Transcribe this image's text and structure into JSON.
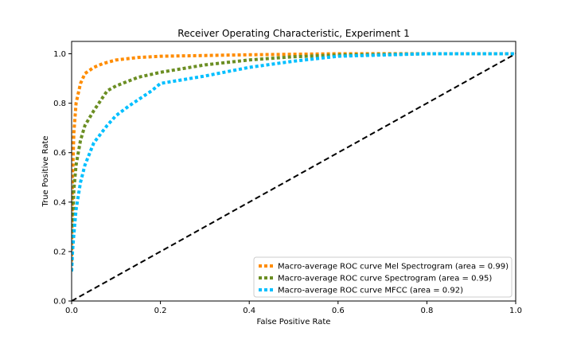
{
  "chart_data": {
    "type": "line",
    "title": "Receiver Operating Characteristic, Experiment 1",
    "xlabel": "False Positive Rate",
    "ylabel": "True Positive Rate",
    "xlim": [
      0.0,
      1.0
    ],
    "ylim": [
      0.0,
      1.05
    ],
    "xticks": [
      "0.0",
      "0.2",
      "0.4",
      "0.6",
      "0.8",
      "1.0"
    ],
    "yticks": [
      "0.0",
      "0.2",
      "0.4",
      "0.6",
      "0.8",
      "1.0"
    ],
    "grid": false,
    "legend_position": "lower-right",
    "series": [
      {
        "name": "Macro-average ROC curve Mel Spectrogram (area = 0.99)",
        "color": "#ff8c00",
        "style": "dotted",
        "x": [
          0.0,
          0.002,
          0.005,
          0.01,
          0.02,
          0.03,
          0.05,
          0.07,
          0.1,
          0.15,
          0.2,
          0.3,
          0.4,
          0.5,
          0.6,
          0.8,
          1.0
        ],
        "y": [
          0.16,
          0.5,
          0.68,
          0.8,
          0.88,
          0.92,
          0.945,
          0.96,
          0.975,
          0.985,
          0.99,
          0.993,
          0.996,
          0.998,
          1.0,
          1.0,
          1.0
        ]
      },
      {
        "name": "Macro-average ROC curve Spectrogram (area = 0.95)",
        "color": "#6b8e23",
        "style": "dotted",
        "x": [
          0.0,
          0.002,
          0.005,
          0.01,
          0.02,
          0.03,
          0.05,
          0.08,
          0.1,
          0.15,
          0.2,
          0.3,
          0.4,
          0.5,
          0.6,
          0.8,
          1.0
        ],
        "y": [
          0.12,
          0.3,
          0.45,
          0.55,
          0.65,
          0.71,
          0.77,
          0.85,
          0.87,
          0.905,
          0.925,
          0.955,
          0.975,
          0.988,
          0.995,
          1.0,
          1.0
        ]
      },
      {
        "name": "Macro-average ROC curve MFCC (area = 0.92)",
        "color": "#00bfff",
        "style": "dotted",
        "x": [
          0.0,
          0.002,
          0.005,
          0.01,
          0.02,
          0.03,
          0.05,
          0.08,
          0.1,
          0.13,
          0.18,
          0.2,
          0.3,
          0.4,
          0.5,
          0.6,
          0.7,
          0.8,
          1.0
        ],
        "y": [
          0.12,
          0.2,
          0.27,
          0.37,
          0.48,
          0.55,
          0.64,
          0.71,
          0.75,
          0.79,
          0.85,
          0.88,
          0.91,
          0.945,
          0.97,
          0.99,
          0.995,
          1.0,
          1.0
        ]
      }
    ],
    "reference_line": {
      "x": [
        0.0,
        1.0
      ],
      "y": [
        0.0,
        1.0
      ],
      "color": "#000000",
      "style": "dashed"
    }
  }
}
